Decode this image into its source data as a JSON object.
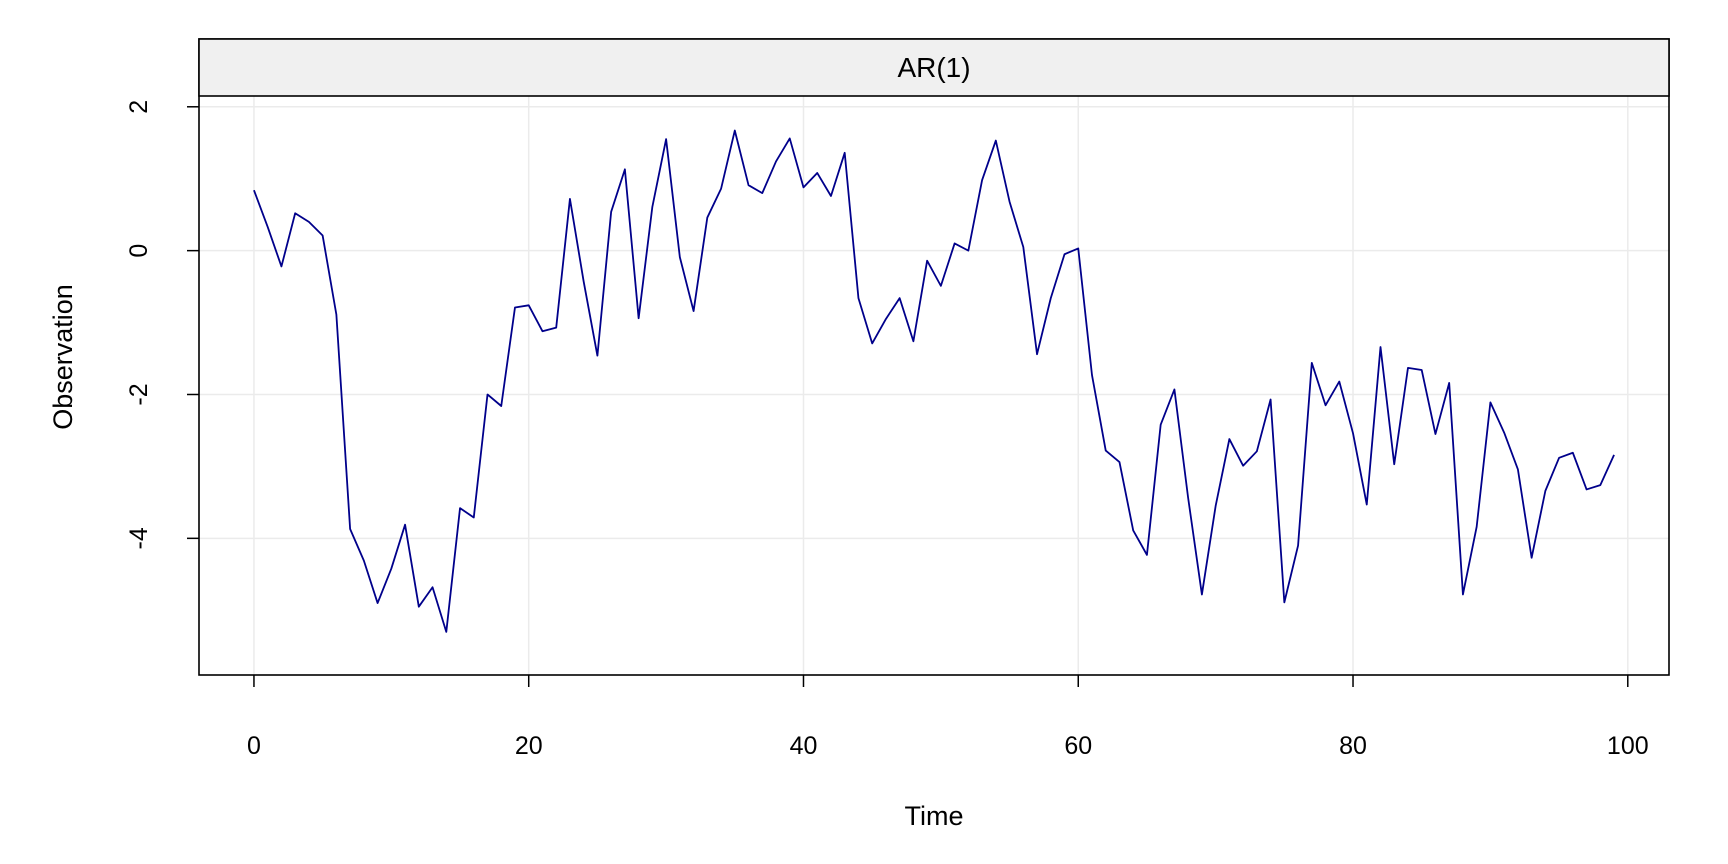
{
  "chart_data": {
    "type": "line",
    "panel_title": "AR(1)",
    "xlabel": "Time",
    "ylabel": "Observation",
    "xlim": [
      -4,
      103
    ],
    "ylim": [
      -5.9,
      2.15
    ],
    "x_ticks": [
      0,
      20,
      40,
      60,
      80,
      100
    ],
    "x_tick_labels": [
      "0",
      "20",
      "40",
      "60",
      "80",
      "100"
    ],
    "y_ticks": [
      -4,
      -2,
      0,
      2
    ],
    "y_tick_labels": [
      "-4",
      "-2",
      "0",
      "2"
    ],
    "grid": true,
    "series": [
      {
        "color": "#00008B",
        "x": [
          0,
          1,
          2,
          3,
          4,
          5,
          6,
          7,
          8,
          9,
          10,
          11,
          12,
          13,
          14,
          15,
          16,
          17,
          18,
          19,
          20,
          21,
          22,
          23,
          24,
          25,
          26,
          27,
          28,
          29,
          30,
          31,
          32,
          33,
          34,
          35,
          36,
          37,
          38,
          39,
          40,
          41,
          42,
          43,
          44,
          45,
          46,
          47,
          48,
          49,
          50,
          51,
          52,
          53,
          54,
          55,
          56,
          57,
          58,
          59,
          60,
          61,
          62,
          63,
          64,
          65,
          66,
          67,
          68,
          69,
          70,
          71,
          72,
          73,
          74,
          75,
          76,
          77,
          78,
          79,
          80,
          81,
          82,
          83,
          84,
          85,
          86,
          87,
          88,
          89,
          90,
          91,
          92,
          93,
          94,
          95,
          96,
          97,
          98,
          99
        ],
        "values": [
          0.84,
          0.33,
          -0.22,
          0.52,
          0.4,
          0.21,
          -0.89,
          -3.87,
          -4.31,
          -4.9,
          -4.42,
          -3.81,
          -4.95,
          -4.68,
          -5.3,
          -3.58,
          -3.71,
          -2.0,
          -2.16,
          -0.79,
          -0.76,
          -1.12,
          -1.07,
          0.72,
          -0.43,
          -1.46,
          0.54,
          1.13,
          -0.94,
          0.61,
          1.55,
          -0.09,
          -0.84,
          0.46,
          0.86,
          1.67,
          0.91,
          0.8,
          1.24,
          1.56,
          0.88,
          1.08,
          0.76,
          1.36,
          -0.66,
          -1.29,
          -0.95,
          -0.66,
          -1.26,
          -0.14,
          -0.49,
          0.1,
          0.0,
          0.98,
          1.53,
          0.68,
          0.05,
          -1.44,
          -0.66,
          -0.05,
          0.03,
          -1.73,
          -2.78,
          -2.94,
          -3.89,
          -4.23,
          -2.42,
          -1.93,
          -3.44,
          -4.78,
          -3.55,
          -2.62,
          -2.99,
          -2.79,
          -2.07,
          -4.89,
          -4.1,
          -1.56,
          -2.15,
          -1.82,
          -2.54,
          -3.53,
          -1.34,
          -2.97,
          -1.63,
          -1.66,
          -2.55,
          -1.84,
          -4.78,
          -3.84,
          -2.11,
          -2.53,
          -3.04,
          -4.27,
          -3.34,
          -2.88,
          -2.81,
          -3.32,
          -3.26,
          -2.84
        ]
      }
    ]
  }
}
